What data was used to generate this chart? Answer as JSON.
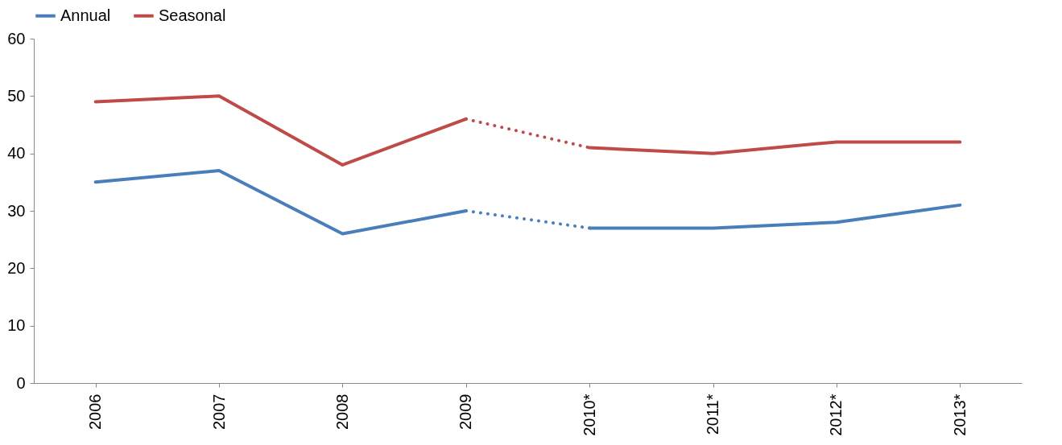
{
  "chart_data": {
    "type": "line",
    "categories": [
      "2006",
      "2007",
      "2008",
      "2009",
      "2010*",
      "2011*",
      "2012*",
      "2013*"
    ],
    "series": [
      {
        "name": "Annual",
        "color": "#4a7ebb",
        "line_style": "solid",
        "values": [
          35,
          37,
          26,
          30,
          null,
          null,
          null,
          null
        ]
      },
      {
        "color": "#4a7ebb",
        "line_style": "dotted",
        "values": [
          null,
          null,
          null,
          30,
          27,
          null,
          null,
          null
        ]
      },
      {
        "color": "#4a7ebb",
        "line_style": "solid",
        "values": [
          null,
          null,
          null,
          null,
          27,
          27,
          28,
          31
        ]
      },
      {
        "name": "Seasonal",
        "color": "#be4b48",
        "line_style": "solid",
        "values": [
          49,
          50,
          38,
          46,
          null,
          null,
          null,
          null
        ]
      },
      {
        "color": "#be4b48",
        "line_style": "dotted",
        "values": [
          null,
          null,
          null,
          46,
          41,
          null,
          null,
          null
        ]
      },
      {
        "color": "#be4b48",
        "line_style": "solid",
        "values": [
          null,
          null,
          null,
          null,
          41,
          40,
          42,
          42
        ]
      }
    ],
    "ylim": [
      0,
      60
    ],
    "yticks": [
      0,
      10,
      20,
      30,
      40,
      50,
      60
    ],
    "grid": false,
    "legend": "top",
    "marker": "none"
  }
}
